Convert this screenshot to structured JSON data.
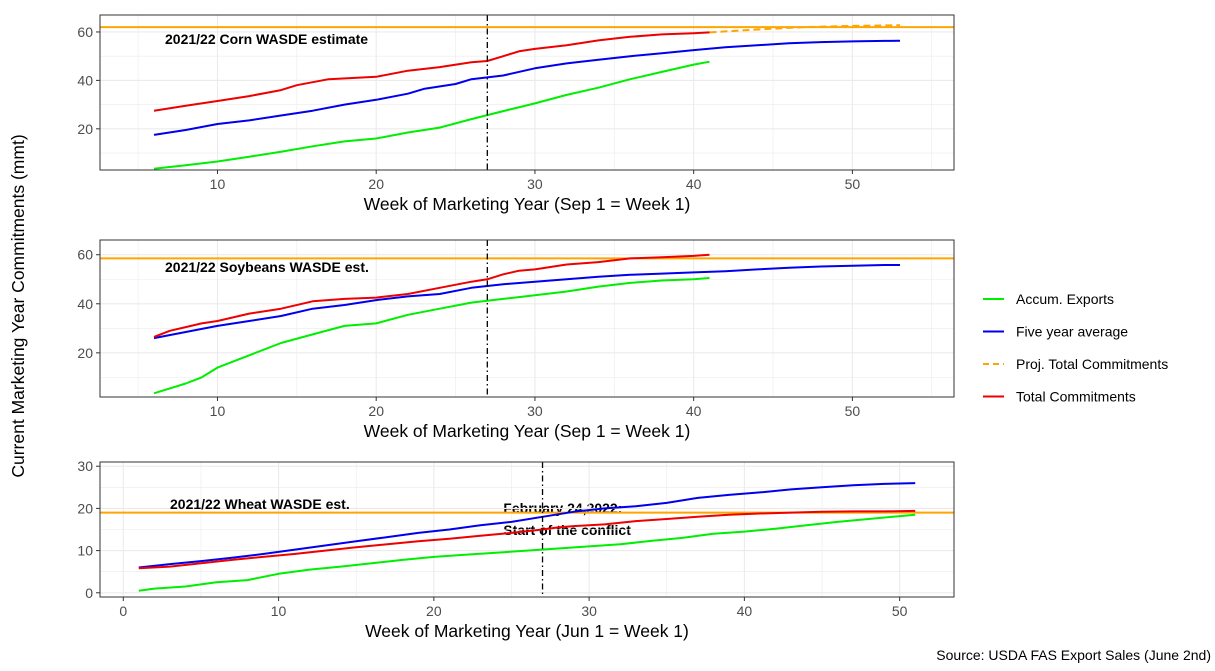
{
  "figure": {
    "ylabel": "Current Marketing Year Commitments (mmt)",
    "source": "Source: USDA FAS Export Sales (June 2nd)"
  },
  "legend": {
    "position": "right",
    "items": [
      {
        "label": "Accum. Exports",
        "color": "#00ee00",
        "style": "solid"
      },
      {
        "label": "Five year average",
        "color": "#0000ee",
        "style": "solid"
      },
      {
        "label": "Proj. Total Commitments",
        "color": "#ffa500",
        "style": "dashed"
      },
      {
        "label": "Total Commitments",
        "color": "#ee0000",
        "style": "solid"
      }
    ]
  },
  "chart_data": [
    {
      "type": "line",
      "panel": "corn",
      "xlabel": "Week of Marketing Year (Sep 1 = Week 1)",
      "xlim": [
        2.6,
        56.4
      ],
      "ylim": [
        3,
        67
      ],
      "xticks": [
        10,
        20,
        30,
        40,
        50
      ],
      "yticks": [
        20,
        40,
        60
      ],
      "grid": true,
      "hline": {
        "y": 62,
        "color": "#ffa500",
        "label": "2021/22 Corn WASDE estimate"
      },
      "vline": {
        "x": 27,
        "style": "dotdash",
        "label_lines": [
          "February 24,2022:",
          "Start of the conflict"
        ]
      },
      "series": [
        {
          "name": "Accum. Exports",
          "color": "#00ee00",
          "x": [
            6,
            8,
            10,
            12,
            14,
            16,
            18,
            20,
            22,
            24,
            26,
            28,
            30,
            32,
            34,
            36,
            38,
            40,
            41
          ],
          "y": [
            3.5,
            5,
            6.5,
            8.5,
            10.5,
            12.8,
            14.8,
            16,
            18.5,
            20.5,
            24,
            27.3,
            30.5,
            34,
            37,
            40.5,
            43.5,
            46.5,
            47.7
          ]
        },
        {
          "name": "Five year average",
          "color": "#0000ee",
          "x": [
            6,
            8,
            10,
            12,
            14,
            16,
            18,
            20,
            22,
            23,
            25,
            26,
            28,
            30,
            32,
            34,
            36,
            38,
            40,
            42,
            44,
            46,
            48,
            50,
            52,
            53
          ],
          "y": [
            17.5,
            19.5,
            22,
            23.5,
            25.5,
            27.5,
            30,
            32,
            34.5,
            36.5,
            38.5,
            40.5,
            42,
            45,
            47,
            48.5,
            50,
            51.2,
            52.5,
            53.7,
            54.5,
            55.3,
            55.8,
            56.1,
            56.3,
            56.4
          ]
        },
        {
          "name": "Total Commitments",
          "color": "#ee0000",
          "x": [
            6,
            8,
            10,
            12,
            14,
            15,
            17,
            20,
            22,
            24,
            26,
            27,
            28,
            29,
            30,
            32,
            34,
            36,
            38,
            40,
            41
          ],
          "y": [
            27.5,
            29.5,
            31.5,
            33.5,
            36,
            38,
            40.5,
            41.5,
            44,
            45.5,
            47.5,
            48,
            50,
            52,
            53,
            54.5,
            56.5,
            58,
            59,
            59.5,
            59.8
          ]
        },
        {
          "name": "Proj. Total Commitments",
          "color": "#ffa500",
          "style": "dashed",
          "x": [
            41,
            44,
            47,
            50,
            53
          ],
          "y": [
            59.8,
            61,
            62,
            62.5,
            62.8
          ]
        }
      ]
    },
    {
      "type": "line",
      "panel": "soybeans",
      "xlabel": "Week of Marketing Year (Sep 1 = Week 1)",
      "xlim": [
        2.6,
        56.4
      ],
      "ylim": [
        2,
        66
      ],
      "xticks": [
        10,
        20,
        30,
        40,
        50
      ],
      "yticks": [
        20,
        40,
        60
      ],
      "grid": true,
      "hline": {
        "y": 58.5,
        "color": "#ffa500",
        "label": "2021/22 Soybeans WASDE est."
      },
      "vline": {
        "x": 27,
        "style": "dotdash"
      },
      "series": [
        {
          "name": "Accum. Exports",
          "color": "#00ee00",
          "x": [
            6,
            7,
            8,
            9,
            10,
            12,
            14,
            16,
            18,
            20,
            22,
            24,
            26,
            28,
            30,
            32,
            34,
            36,
            38,
            40,
            41
          ],
          "y": [
            3.5,
            5.5,
            7.5,
            10,
            14,
            19,
            24,
            27.5,
            31,
            32,
            35.5,
            38,
            40.5,
            42,
            43.5,
            45,
            47,
            48.5,
            49.5,
            50,
            50.5
          ]
        },
        {
          "name": "Five year average",
          "color": "#0000ee",
          "x": [
            6,
            8,
            10,
            12,
            14,
            16,
            18,
            20,
            22,
            24,
            26,
            28,
            30,
            32,
            34,
            36,
            38,
            40,
            42,
            44,
            46,
            48,
            50,
            52,
            53
          ],
          "y": [
            26,
            28.5,
            31,
            33,
            35,
            38,
            39.5,
            41.5,
            43,
            44,
            46.5,
            48,
            49,
            50,
            51,
            51.8,
            52.3,
            52.8,
            53.3,
            54,
            54.7,
            55.2,
            55.5,
            55.8,
            55.8
          ]
        },
        {
          "name": "Total Commitments",
          "color": "#ee0000",
          "x": [
            6,
            7,
            8,
            9,
            10,
            12,
            14,
            16,
            18,
            20,
            22,
            24,
            26,
            27,
            28,
            29,
            30,
            32,
            34,
            36,
            38,
            40,
            41
          ],
          "y": [
            26.5,
            29,
            30.5,
            32,
            33,
            36,
            38,
            41,
            42,
            42.5,
            44,
            46.5,
            49,
            50,
            52,
            53.5,
            54,
            56,
            57,
            58.5,
            59,
            59.5,
            60
          ]
        }
      ]
    },
    {
      "type": "line",
      "panel": "wheat",
      "xlabel": "Week of Marketing Year (Jun 1 = Week 1)",
      "xlim": [
        -1.5,
        53.5
      ],
      "ylim": [
        -1,
        31
      ],
      "xticks": [
        0,
        10,
        20,
        30,
        40,
        50
      ],
      "yticks": [
        0,
        10,
        20,
        30
      ],
      "grid": true,
      "hline": {
        "y": 19,
        "color": "#ffa500",
        "label": "2021/22 Wheat WASDE est."
      },
      "vline": {
        "x": 27,
        "style": "dotdash"
      },
      "series": [
        {
          "name": "Accum. Exports",
          "color": "#00ee00",
          "x": [
            1,
            2,
            4,
            6,
            8,
            10,
            12,
            14,
            16,
            18,
            20,
            22,
            24,
            26,
            28,
            30,
            32,
            34,
            36,
            38,
            40,
            42,
            44,
            46,
            48,
            51
          ],
          "y": [
            0.5,
            1,
            1.5,
            2.5,
            3,
            4.5,
            5.5,
            6.2,
            7,
            7.8,
            8.5,
            9,
            9.5,
            10,
            10.5,
            11,
            11.5,
            12.3,
            13,
            14,
            14.5,
            15.2,
            16,
            16.8,
            17.5,
            18.5
          ]
        },
        {
          "name": "Five year average",
          "color": "#0000ee",
          "x": [
            1,
            3,
            5,
            7,
            9,
            11,
            13,
            15,
            17,
            19,
            21,
            23,
            25,
            27,
            29,
            31,
            33,
            35,
            37,
            39,
            41,
            43,
            45,
            47,
            49,
            51
          ],
          "y": [
            6,
            6.8,
            7.5,
            8.3,
            9.2,
            10.2,
            11.2,
            12.2,
            13.2,
            14.2,
            15,
            16,
            16.8,
            18,
            19.2,
            20,
            20.5,
            21.3,
            22.5,
            23.2,
            23.8,
            24.5,
            25,
            25.5,
            25.8,
            26
          ]
        },
        {
          "name": "Total Commitments",
          "color": "#ee0000",
          "x": [
            1,
            3,
            5,
            7,
            9,
            11,
            13,
            15,
            17,
            19,
            21,
            23,
            25,
            27,
            28,
            29,
            31,
            33,
            35,
            37,
            39,
            41,
            43,
            45,
            47,
            49,
            51
          ],
          "y": [
            5.8,
            6.2,
            7,
            7.8,
            8.5,
            9.2,
            10,
            10.8,
            11.5,
            12.2,
            12.8,
            13.5,
            14.2,
            15,
            15.5,
            15.8,
            16.2,
            17,
            17.5,
            18,
            18.5,
            18.8,
            19,
            19.2,
            19.3,
            19.3,
            19.4
          ]
        }
      ]
    }
  ]
}
